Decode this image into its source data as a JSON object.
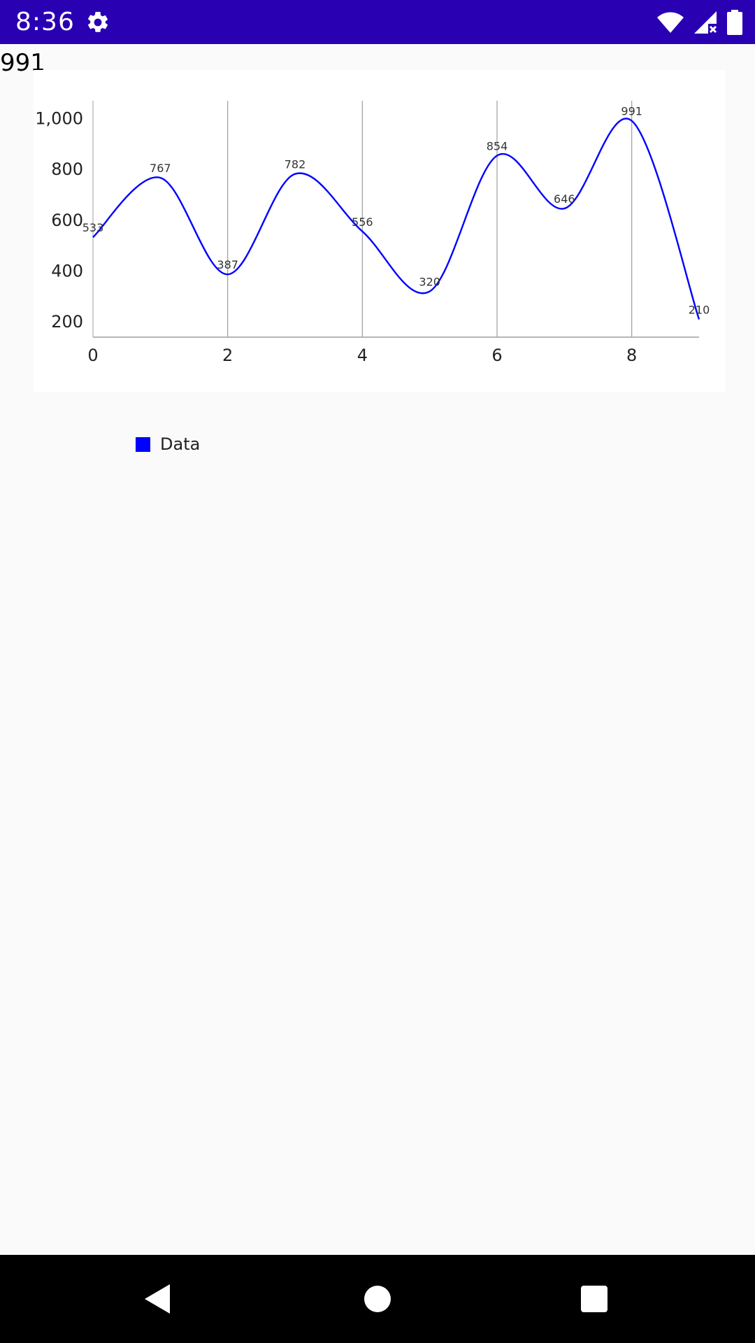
{
  "status_bar": {
    "time": "8:36",
    "background": "#2a00b3",
    "icons": [
      "gear-icon",
      "wifi-icon",
      "cell-signal-no-data-icon",
      "battery-icon"
    ]
  },
  "header": {
    "value": "991"
  },
  "chart_data": {
    "type": "line",
    "x": [
      0,
      1,
      2,
      3,
      4,
      5,
      6,
      7,
      8,
      9
    ],
    "series": [
      {
        "name": "Data",
        "color": "#0000ff",
        "values": [
          533,
          767,
          387,
          782,
          556,
          320,
          854,
          646,
          991,
          210
        ]
      }
    ],
    "x_ticks": [
      0,
      2,
      4,
      6,
      8
    ],
    "x_tick_labels": [
      "0",
      "2",
      "4",
      "6",
      "8"
    ],
    "y_ticks": [
      200,
      400,
      600,
      800,
      1000
    ],
    "y_tick_labels": [
      "200",
      "400",
      "600",
      "800",
      "1,000"
    ],
    "xlim": [
      0,
      9
    ],
    "ylim": [
      140,
      1070
    ],
    "data_labels": [
      "533",
      "767",
      "387",
      "782",
      "556",
      "320",
      "854",
      "646",
      "991",
      "210"
    ],
    "smooth": true,
    "grid": "vertical",
    "legend": "bottom-left",
    "title": "",
    "xlabel": "",
    "ylabel": ""
  },
  "legend": {
    "label": "Data",
    "color": "#0000ff"
  },
  "nav_bar": {
    "icons": [
      "back-icon",
      "home-icon",
      "recents-icon"
    ]
  }
}
